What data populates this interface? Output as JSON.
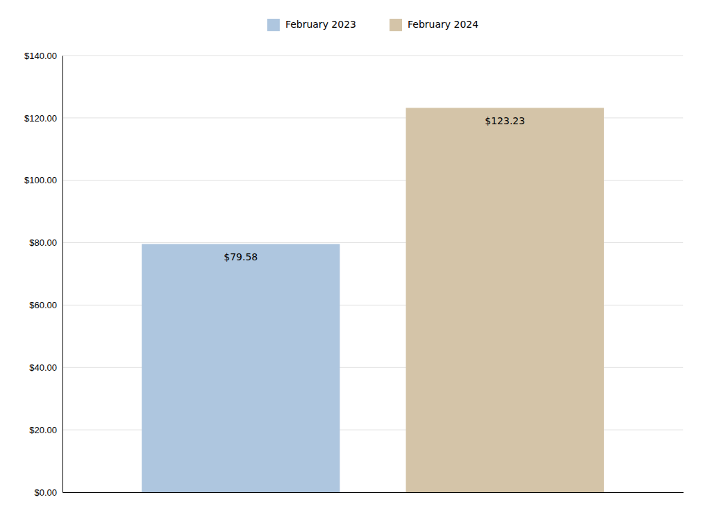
{
  "chart_data": {
    "type": "bar",
    "categories": [
      "February 2023",
      "February 2024"
    ],
    "values": [
      79.58,
      123.23
    ],
    "value_labels": [
      "$79.58",
      "$123.23"
    ],
    "colors": [
      "#aec6df",
      "#d4c4a8"
    ],
    "ylim": [
      0,
      140
    ],
    "yticks": [
      {
        "value": 0,
        "label": "$0.00"
      },
      {
        "value": 20,
        "label": "$20.00"
      },
      {
        "value": 40,
        "label": "$40.00"
      },
      {
        "value": 60,
        "label": "$60.00"
      },
      {
        "value": 80,
        "label": "$80.00"
      },
      {
        "value": 100,
        "label": "$100.00"
      },
      {
        "value": 120,
        "label": "$120.00"
      },
      {
        "value": 140,
        "label": "$140.00"
      }
    ],
    "grid": true,
    "legend": "top",
    "data_labels": true,
    "tick_labels": "y"
  }
}
